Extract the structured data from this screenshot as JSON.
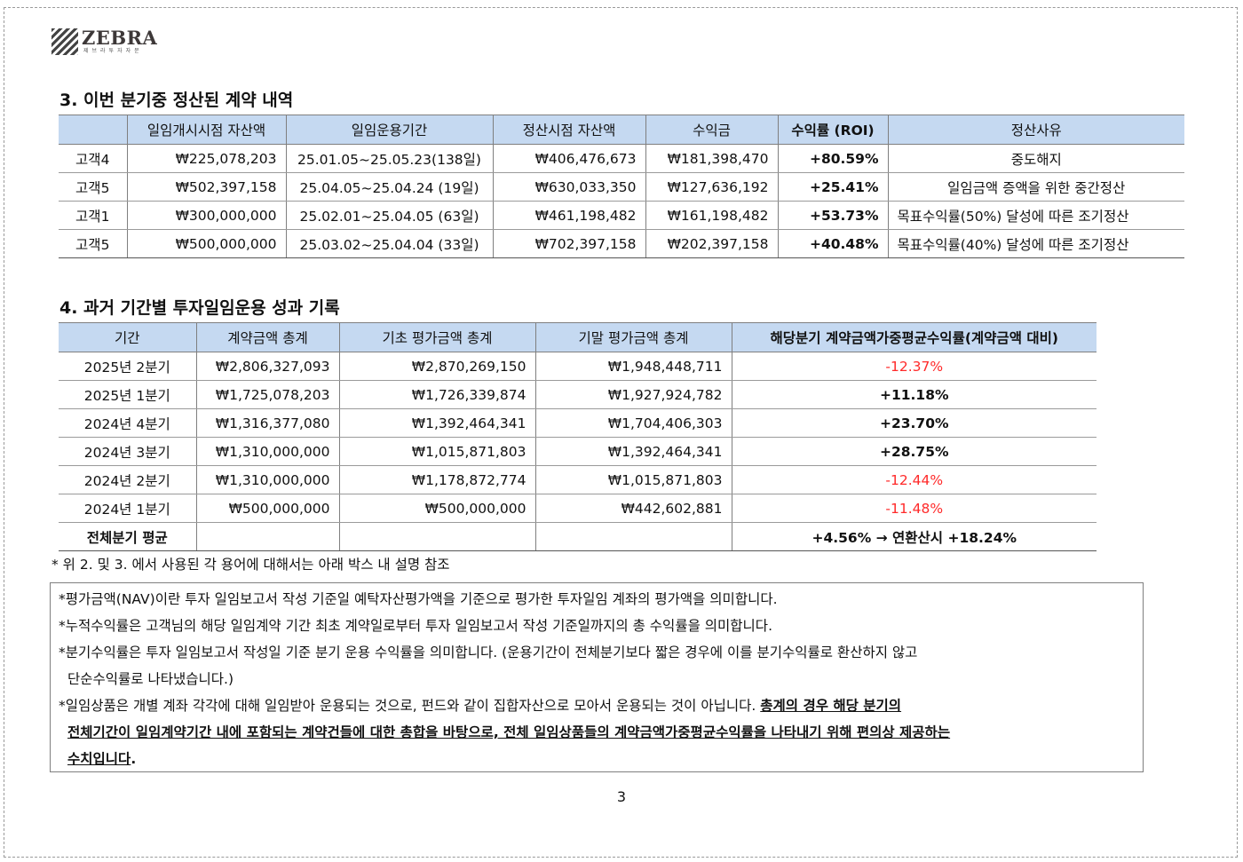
{
  "logo": {
    "name": "ZEBRA",
    "subtitle": "제브라투자자문"
  },
  "section3": {
    "title": "3. 이번 분기중 정산된 계약 내역",
    "headers": [
      "",
      "일임개시시점 자산액",
      "일임운용기간",
      "정산시점 자산액",
      "수익금",
      "수익률 (ROI)",
      "정산사유"
    ],
    "rows": [
      [
        "고객4",
        "₩225,078,203",
        "25.01.05~25.05.23(138일)",
        "₩406,476,673",
        "₩181,398,470",
        "+80.59%",
        "중도해지"
      ],
      [
        "고객5",
        "₩502,397,158",
        "25.04.05~25.04.24 (19일)",
        "₩630,033,350",
        "₩127,636,192",
        "+25.41%",
        "일임금액 증액을 위한 중간정산"
      ],
      [
        "고객1",
        "₩300,000,000",
        "25.02.01~25.04.05 (63일)",
        "₩461,198,482",
        "₩161,198,482",
        "+53.73%",
        "목표수익률(50%) 달성에 따른 조기정산"
      ],
      [
        "고객5",
        "₩500,000,000",
        "25.03.02~25.04.04 (33일)",
        "₩702,397,158",
        "₩202,397,158",
        "+40.48%",
        "목표수익률(40%) 달성에 따른 조기정산"
      ]
    ]
  },
  "section4": {
    "title": "4. 과거 기간별 투자일임운용 성과 기록",
    "headers": [
      "기간",
      "계약금액 총계",
      "기초 평가금액 총계",
      "기말 평가금액 총계",
      "해당분기 계약금액가중평균수익률(계약금액 대비)"
    ],
    "rows": [
      [
        "2025년 2분기",
        "₩2,806,327,093",
        "₩2,870,269,150",
        "₩1,948,448,711",
        "-12.37%"
      ],
      [
        "2025년 1분기",
        "₩1,725,078,203",
        "₩1,726,339,874",
        "₩1,927,924,782",
        "+11.18%"
      ],
      [
        "2024년 4분기",
        "₩1,316,377,080",
        "₩1,392,464,341",
        "₩1,704,406,303",
        "+23.70%"
      ],
      [
        "2024년 3분기",
        "₩1,310,000,000",
        "₩1,015,871,803",
        "₩1,392,464,341",
        "+28.75%"
      ],
      [
        "2024년 2분기",
        "₩1,310,000,000",
        "₩1,178,872,774",
        "₩1,015,871,803",
        "-12.44%"
      ],
      [
        "2024년 1분기",
        "₩500,000,000",
        "₩500,000,000",
        "₩442,602,881",
        "-11.48%"
      ]
    ],
    "total": {
      "label": "전체분기 평균",
      "value": "+4.56% → 연환산시 +18.24%"
    },
    "colors": {
      "negative": "#ff2a2a",
      "header_bg": "#c5d9f1"
    }
  },
  "footnote": "* 위 2. 및 3. 에서 사용된 각 용어에 대해서는 아래 박스 내 설명 참조",
  "notes": {
    "n1": "*평가금액(NAV)이란 투자 일임보고서 작성 기준일 예탁자산평가액을 기준으로 평가한 투자일임 계좌의 평가액을 의미합니다.",
    "n2": "*누적수익률은 고객님의 해당 일임계약 기간 최초 계약일로부터 투자 일임보고서 작성 기준일까지의 총 수익률을 의미합니다.",
    "n3a": "*분기수익률은 투자 일임보고서 작성일 기준 분기 운용 수익률을 의미합니다. (운용기간이 전체분기보다 짧은 경우에 이를 분기수익률로 환산하지 않고",
    "n3b": "단순수익률로 나타냈습니다.)",
    "n4a": "*일임상품은 개별 계좌 각각에 대해 일임받아 운용되는 것으로, 펀드와 같이 집합자산으로 모아서 운용되는 것이 아닙니다. ",
    "n4b": "총계의 경우 해당 분기의",
    "n4c": "전체기간이 일임계약기간 내에 포함되는 계약건들에 대한 총합을 바탕으로, 전체 일임상품들의 계약금액가중평균수익률을 나타내기 위해 편의상 제공하는",
    "n4d": "수치입니다",
    "n4e": "."
  },
  "page_number": "3"
}
